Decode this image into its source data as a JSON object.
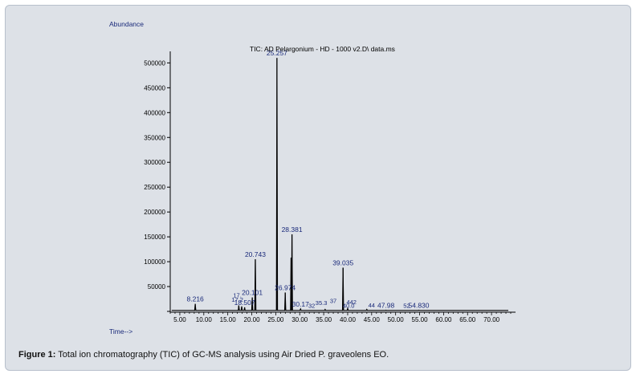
{
  "figure": {
    "caption_label": "Figure 1:",
    "caption_text": " Total ion chromatography (TIC) of GC-MS analysis using Air Dried P. graveolens EO."
  },
  "chart_data": {
    "type": "line",
    "title": "TIC: AD Pelargonium - HD - 1000 v2.D\\ data.ms",
    "ylabel": "Abundance",
    "xlabel": "Time-->",
    "xlim": [
      3.0,
      74.0
    ],
    "ylim": [
      0,
      520000
    ],
    "xticks": [
      5,
      10,
      15,
      20,
      25,
      30,
      35,
      40,
      45,
      50,
      55,
      60,
      65,
      70
    ],
    "xtick_labels": [
      "5.00",
      "10.00",
      "15.00",
      "20.00",
      "25.00",
      "30.00",
      "35.00",
      "40.00",
      "45.00",
      "50.00",
      "55.00",
      "60.00",
      "65.00",
      "70.00"
    ],
    "yticks": [
      50000,
      100000,
      150000,
      200000,
      250000,
      300000,
      350000,
      400000,
      450000,
      500000
    ],
    "ytick_labels": [
      "50000",
      "100000",
      "150000",
      "200000",
      "250000",
      "300000",
      "350000",
      "400000",
      "450000",
      "500000"
    ],
    "baseline": 2000,
    "peaks": [
      {
        "x": 8.216,
        "y": 15000,
        "label": "8.216"
      },
      {
        "x": 17.3,
        "y": 12000,
        "label": ""
      },
      {
        "x": 17.9,
        "y": 10000,
        "label": ""
      },
      {
        "x": 18.507,
        "y": 8000,
        "label": "18.507"
      },
      {
        "x": 20.101,
        "y": 28000,
        "label": "20.101"
      },
      {
        "x": 20.743,
        "y": 105000,
        "label": "20.743"
      },
      {
        "x": 25.257,
        "y": 510000,
        "label": "25.257"
      },
      {
        "x": 26.974,
        "y": 38000,
        "label": "26.974"
      },
      {
        "x": 28.2,
        "y": 108000,
        "label": ""
      },
      {
        "x": 28.381,
        "y": 155000,
        "label": "28.381"
      },
      {
        "x": 30.17,
        "y": 5000,
        "label": "30.17"
      },
      {
        "x": 35.3,
        "y": 4000,
        "label": ""
      },
      {
        "x": 39.035,
        "y": 88000,
        "label": "39.035"
      },
      {
        "x": 40.0,
        "y": 6000,
        "label": ""
      },
      {
        "x": 44.0,
        "y": 4000,
        "label": ""
      },
      {
        "x": 47.98,
        "y": 2500,
        "label": "47.98"
      },
      {
        "x": 54.83,
        "y": 2500,
        "label": "54.830"
      }
    ],
    "overlapping_labels": [
      {
        "x": 17.0,
        "y": 25000,
        "text": "17."
      },
      {
        "x": 17.0,
        "y": 16000,
        "text": "17.2"
      },
      {
        "x": 34.5,
        "y": 10000,
        "text": "35.3"
      },
      {
        "x": 37.0,
        "y": 14000,
        "text": "37"
      },
      {
        "x": 32.5,
        "y": 4000,
        "text": "32"
      },
      {
        "x": 40.8,
        "y": 11000,
        "text": "442"
      },
      {
        "x": 40.2,
        "y": 4000,
        "text": "40.0"
      },
      {
        "x": 45.0,
        "y": 4500,
        "text": "44"
      },
      {
        "x": 52.3,
        "y": 4000,
        "text": "52"
      }
    ]
  }
}
